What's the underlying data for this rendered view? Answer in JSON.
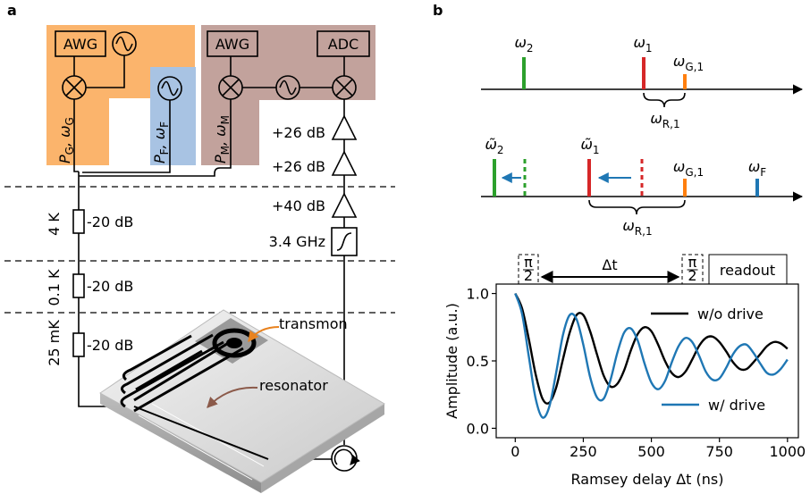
{
  "panel_a": {
    "label": "a",
    "instruments": {
      "awg_g": "AWG",
      "awg_m": "AWG",
      "adc": "ADC"
    },
    "drives": [
      {
        "text1": "P",
        "sub1": "G",
        "text2": ", ω",
        "sub2": "G"
      },
      {
        "text1": "P",
        "sub1": "F",
        "text2": ", ω",
        "sub2": "F"
      },
      {
        "text1": "P",
        "sub1": "M",
        "text2": ", ω",
        "sub2": "M"
      }
    ],
    "amplifiers": [
      "+26 dB",
      "+26 dB",
      "+40 dB"
    ],
    "filter": "3.4 GHz",
    "stages": [
      "4 K",
      "0.1 K",
      "25 mK"
    ],
    "attenuators": [
      "-20 dB",
      "-20 dB",
      "-20 dB"
    ],
    "device": {
      "transmon": "transmon",
      "resonator": "resonator"
    }
  },
  "panel_b": {
    "label": "b",
    "spectrum_1": {
      "labels": [
        {
          "text": "ω",
          "sub": "2"
        },
        {
          "text": "ω",
          "sub": "1"
        },
        {
          "text": "ω",
          "sub": "G,1"
        }
      ],
      "detuning": {
        "text": "ω",
        "sub": "R,1"
      }
    },
    "spectrum_2": {
      "labels": [
        {
          "text": "ω̃",
          "sub": "2"
        },
        {
          "text": "ω̃",
          "sub": "1"
        },
        {
          "text": "ω",
          "sub": "G,1"
        },
        {
          "text": "ω",
          "sub": "F"
        }
      ],
      "detuning": {
        "text": "ω",
        "sub": "R,1"
      }
    },
    "sequence": {
      "pi_half": [
        {
          "num": "π",
          "den": "2"
        },
        {
          "num": "π",
          "den": "2"
        }
      ],
      "delay": "Δt",
      "readout": "readout"
    }
  },
  "chart_data": {
    "type": "line",
    "xlabel": "Ramsey delay Δt (ns)",
    "ylabel": "Amplitude (a.u.)",
    "x": [
      0,
      25,
      50,
      75,
      100,
      125,
      150,
      175,
      200,
      225,
      250,
      275,
      300,
      325,
      350,
      375,
      400,
      425,
      450,
      475,
      500,
      525,
      550,
      575,
      600,
      625,
      650,
      675,
      700,
      725,
      750,
      775,
      800,
      825,
      850,
      875,
      900,
      925,
      950,
      975,
      1000
    ],
    "series": [
      {
        "name": "w/o drive",
        "color": "#000000",
        "values": [
          1,
          0.89,
          0.66,
          0.4,
          0.22,
          0.19,
          0.3,
          0.51,
          0.71,
          0.84,
          0.84,
          0.72,
          0.55,
          0.39,
          0.31,
          0.33,
          0.43,
          0.58,
          0.7,
          0.75,
          0.72,
          0.62,
          0.5,
          0.41,
          0.38,
          0.42,
          0.51,
          0.61,
          0.67,
          0.68,
          0.64,
          0.57,
          0.49,
          0.44,
          0.44,
          0.49,
          0.55,
          0.61,
          0.64,
          0.63,
          0.59
        ]
      },
      {
        "name": "w/ drive",
        "color": "#1f77b4",
        "values": [
          1,
          0.85,
          0.53,
          0.22,
          0.08,
          0.16,
          0.41,
          0.69,
          0.84,
          0.81,
          0.62,
          0.38,
          0.23,
          0.22,
          0.36,
          0.56,
          0.71,
          0.74,
          0.65,
          0.48,
          0.34,
          0.29,
          0.35,
          0.49,
          0.61,
          0.67,
          0.64,
          0.54,
          0.42,
          0.36,
          0.37,
          0.45,
          0.55,
          0.61,
          0.62,
          0.56,
          0.48,
          0.41,
          0.4,
          0.44,
          0.51
        ]
      }
    ],
    "xlim": [
      -70,
      1040
    ],
    "ylim": [
      -0.07,
      1.07
    ],
    "xticks": [
      0,
      250,
      500,
      750,
      1000
    ],
    "yticks": [
      {
        "value": 0,
        "label": "0.0"
      },
      {
        "value": 0.5,
        "label": "0.5"
      },
      {
        "value": 1,
        "label": "1.0"
      }
    ]
  }
}
